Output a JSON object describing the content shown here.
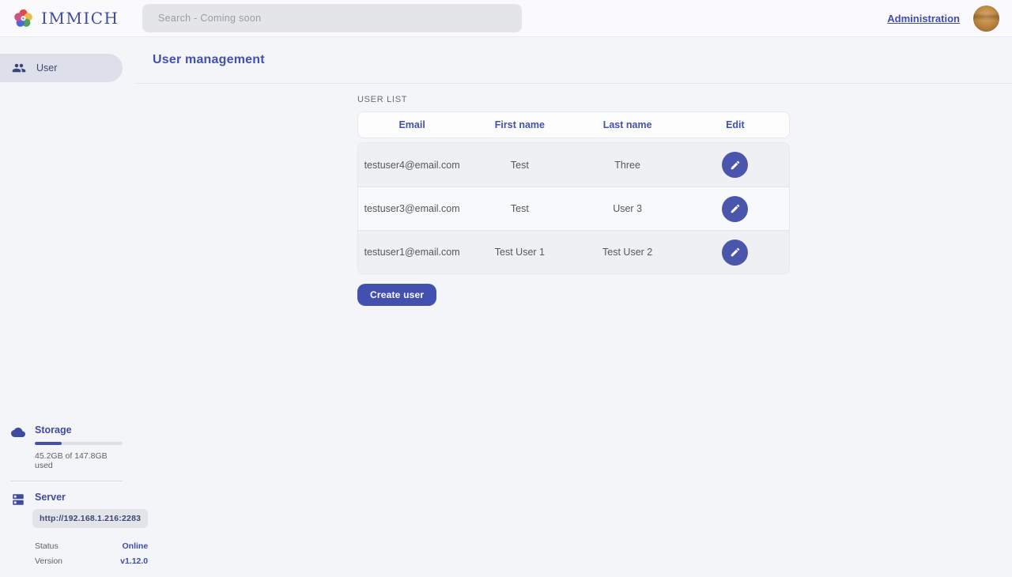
{
  "topbar": {
    "brand": "IMMICH",
    "search_placeholder": "Search - Coming soon",
    "admin_link": "Administration"
  },
  "sidebar": {
    "items": [
      {
        "label": "User"
      }
    ],
    "storage": {
      "title": "Storage",
      "usage_text": "45.2GB of 147.8GB used",
      "percent": 30.6
    },
    "server": {
      "title": "Server",
      "url": "http://192.168.1.216:2283",
      "status_label": "Status",
      "status_value": "Online",
      "version_label": "Version",
      "version_value": "v1.12.0"
    }
  },
  "main": {
    "title": "User management",
    "list_label": "USER LIST",
    "table": {
      "headers": [
        "Email",
        "First name",
        "Last name",
        "Edit"
      ],
      "rows": [
        {
          "email": "testuser4@email.com",
          "first_name": "Test",
          "last_name": "Three"
        },
        {
          "email": "testuser3@email.com",
          "first_name": "Test",
          "last_name": "User 3"
        },
        {
          "email": "testuser1@email.com",
          "first_name": "Test User 1",
          "last_name": "Test User 2"
        }
      ]
    },
    "create_button": "Create user"
  },
  "colors": {
    "primary": "#4250af",
    "edit_button": "#4956ab",
    "status_online": "#3f4cac",
    "row_alt": "#eff0f3"
  }
}
